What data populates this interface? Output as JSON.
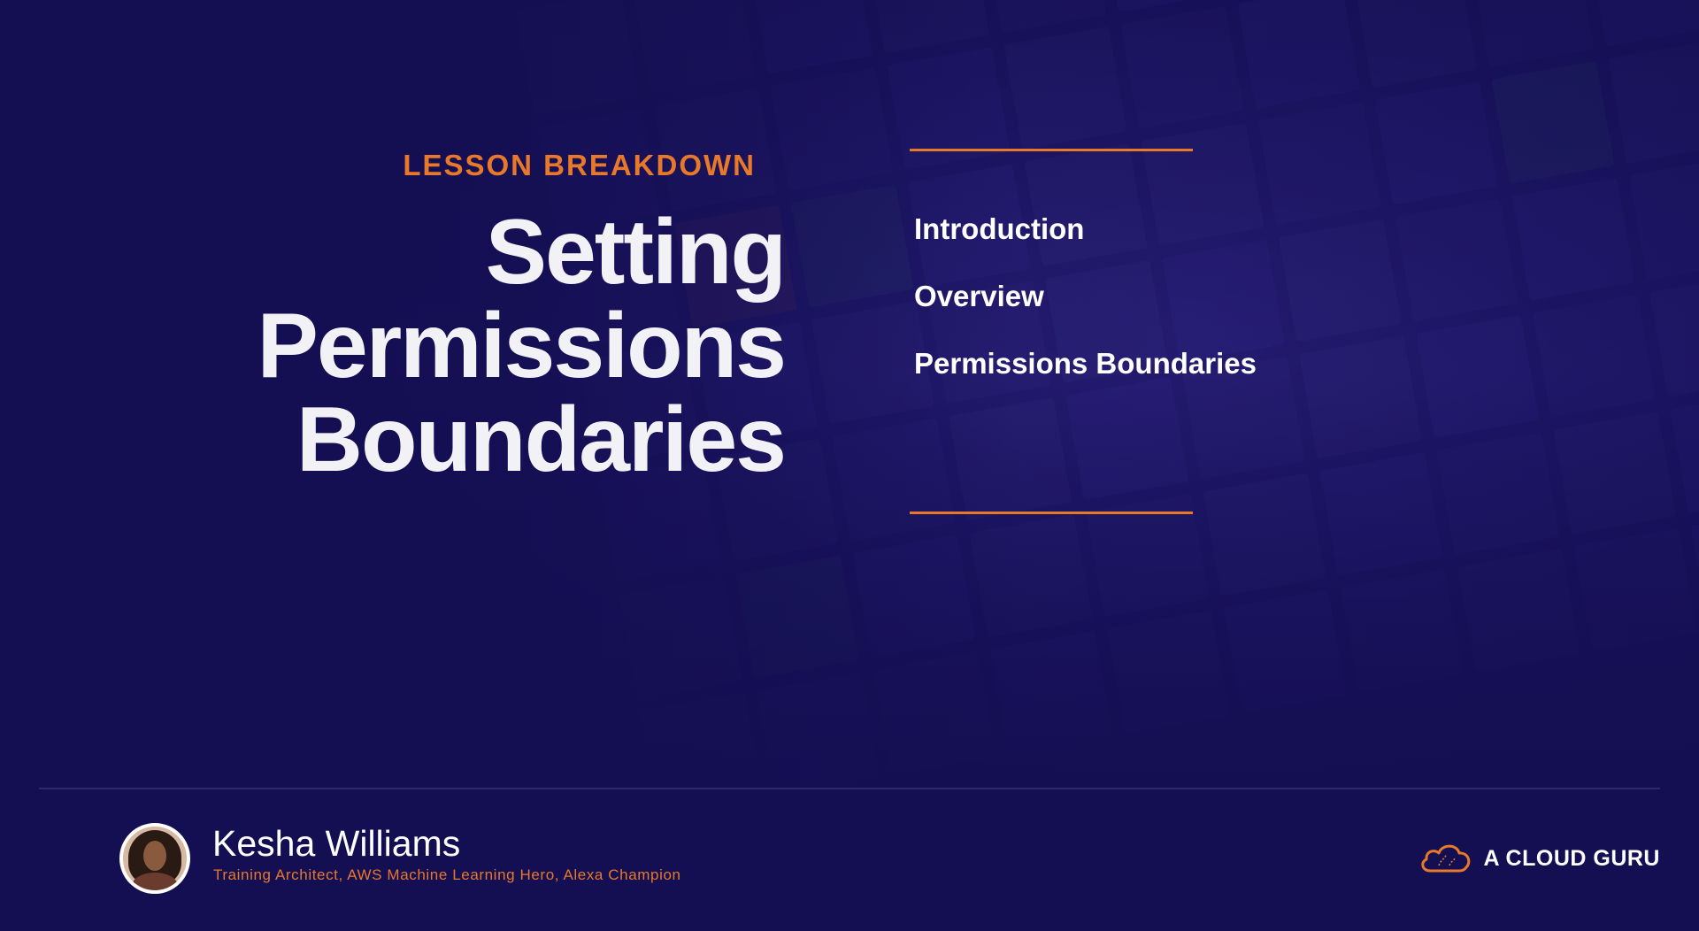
{
  "slide": {
    "eyebrow": "LESSON BREAKDOWN",
    "title_lines": [
      "Setting",
      "Permissions",
      "Boundaries"
    ],
    "agenda": [
      "Introduction",
      "Overview",
      "Permissions Boundaries"
    ]
  },
  "presenter": {
    "name": "Kesha Williams",
    "role": "Training Architect, AWS Machine Learning Hero, Alexa Champion"
  },
  "brand": {
    "name": "A CLOUD GURU",
    "logo_icon": "cloud-icon"
  },
  "colors": {
    "accent": "#e8782a",
    "background": "#1a1460",
    "text": "#ffffff"
  }
}
